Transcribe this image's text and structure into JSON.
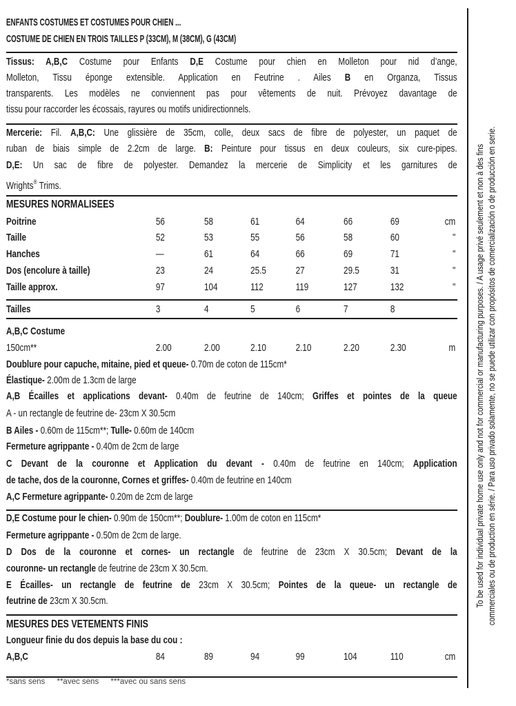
{
  "header": {
    "lines": [
      "ENFANTS COSTUMES ET COSTUMES POUR CHIEN ...",
      "COSTUME DE CHIEN EN TROIS TAILLES P (33CM), M (38CM), G (43CM)"
    ]
  },
  "tissus": {
    "lines": [
      [
        {
          "t": "Tissus: A,B,C",
          "b": true
        },
        {
          "t": " Costume pour Enfants "
        },
        {
          "t": "D,E",
          "b": true
        },
        {
          "t": " Costume pour chien en Molleton pour nid d’ange,"
        }
      ],
      [
        {
          "t": "Molleton, Tissu éponge extensible. Application en Feutrine . Ailes "
        },
        {
          "t": "B",
          "b": true
        },
        {
          "t": " en Organza, Tissus"
        }
      ],
      [
        {
          "t": "transparents. Les modèles ne conviennent pas pour vêtements de nuit. Prévoyez davantage de"
        }
      ],
      [
        {
          "t": "tissu pour raccorder les écossais, rayures ou motifs unidirectionnels."
        }
      ]
    ]
  },
  "mercerie": {
    "lines": [
      [
        {
          "t": "Mercerie:",
          "b": true
        },
        {
          "t": " Fil. "
        },
        {
          "t": "A,B,C:",
          "b": true
        },
        {
          "t": " Une glissière de 35cm, colle, deux sacs de fibre de polyester, un paquet de"
        }
      ],
      [
        {
          "t": "ruban de biais simple de 2.2cm de large. "
        },
        {
          "t": "B:",
          "b": true
        },
        {
          "t": " Peinture pour tissus en deux couleurs, six cure-pipes."
        }
      ],
      [
        {
          "t": "D,E:",
          "b": true
        },
        {
          "t": " Un sac de fibre de polyester. Demandez la mercerie de Simplicity et les garnitures de"
        }
      ],
      [
        {
          "t": "Wrights"
        },
        {
          "t": "®",
          "sup": true
        },
        {
          "t": " Trims."
        }
      ]
    ]
  },
  "measurements": {
    "title": "MESURES NORMALISEES",
    "rows": [
      {
        "label": "Poitrine",
        "values": [
          "56",
          "58",
          "61",
          "64",
          "66",
          "69"
        ],
        "unit": "cm"
      },
      {
        "label": "Taille",
        "values": [
          "52",
          "53",
          "55",
          "56",
          "58",
          "60"
        ],
        "unit": "\""
      },
      {
        "label": "Hanches",
        "values": [
          "—",
          "61",
          "64",
          "66",
          "69",
          "71"
        ],
        "unit": "\""
      },
      {
        "label": "Dos (encolure à taille)",
        "values": [
          "23",
          "24",
          "25.5",
          "27",
          "29.5",
          "31"
        ],
        "unit": "\""
      },
      {
        "label": "Taille approx.",
        "values": [
          "97",
          "104",
          "112",
          "119",
          "127",
          "132"
        ],
        "unit": "\""
      }
    ]
  },
  "sizes": {
    "label": "Tailles",
    "values": [
      "3",
      "4",
      "5",
      "6",
      "7",
      "8"
    ]
  },
  "costume_abc": {
    "heading": "A,B,C Costume",
    "row": {
      "label": "150cm**",
      "values": [
        "2.00",
        "2.00",
        "2.10",
        "2.10",
        "2.20",
        "2.30"
      ],
      "unit": "m"
    }
  },
  "abc_notes": {
    "lines": [
      [
        {
          "t": "Doublure pour capuche, mitaine, pied et queue-",
          "b": true
        },
        {
          "t": " 0.70m de coton de 115cm*"
        }
      ],
      [
        {
          "t": "Élastique-",
          "b": true
        },
        {
          "t": " 2.00m de 1.3cm de large"
        }
      ],
      [
        {
          "t": "A,B Écailles et applications devant-",
          "b": true
        },
        {
          "t": " 0.40m de feutrine de 140cm; "
        },
        {
          "t": "Griffes et pointes de la queue",
          "b": true
        }
      ],
      [
        {
          "t": "A - un rectangle de feutrine de- 23cm X 30.5cm"
        }
      ],
      [
        {
          "t": "B Ailes -",
          "b": true
        },
        {
          "t": " 0.60m de 115cm**; "
        },
        {
          "t": "Tulle-",
          "b": true
        },
        {
          "t": " 0.60m de 140cm"
        }
      ],
      [
        {
          "t": "Fermeture agrippante -",
          "b": true
        },
        {
          "t": " 0.40m de 2cm de large"
        }
      ],
      [
        {
          "t": "C Devant de la couronne et Application du devant -",
          "b": true
        },
        {
          "t": " 0.40m de feutrine en 140cm; "
        },
        {
          "t": "Application",
          "b": true
        }
      ],
      [
        {
          "t": "de tache, dos de la couronne, Cornes et griffes-",
          "b": true
        },
        {
          "t": " 0.40m de feutrine en 140cm"
        }
      ],
      [
        {
          "t": "A,C Fermeture agrippante-",
          "b": true
        },
        {
          "t": " 0.20m de 2cm de large"
        }
      ]
    ]
  },
  "de_notes": {
    "lines": [
      [
        {
          "t": "D,E Costume pour le chien-",
          "b": true
        },
        {
          "t": " 0.90m de 150cm**; "
        },
        {
          "t": "Doublure-",
          "b": true
        },
        {
          "t": " 1.00m de coton en 115cm*"
        }
      ],
      [
        {
          "t": "Fermeture agrippante -",
          "b": true
        },
        {
          "t": " 0.50m de 2cm de large."
        }
      ],
      [
        {
          "t": "D Dos de la couronne et cornes- un rectangle",
          "b": true
        },
        {
          "t": " de feutrine de 23cm X 30.5cm; "
        },
        {
          "t": "Devant de la",
          "b": true
        }
      ],
      [
        {
          "t": "couronne- un rectangle",
          "b": true
        },
        {
          "t": " de feutrine de 23cm X 30.5cm."
        }
      ],
      [
        {
          "t": "E Écailles- un rectangle de feutrine de",
          "b": true
        },
        {
          "t": " 23cm X 30.5cm; "
        },
        {
          "t": "Pointes de la queue- un rectangle de",
          "b": true
        }
      ],
      [
        {
          "t": "feutrine de",
          "b": true
        },
        {
          "t": " 23cm X 30.5cm."
        }
      ]
    ]
  },
  "finished": {
    "title": "MESURES DES VETEMENTS FINIS",
    "subtitle": "Longueur finie du dos depuis la base du cou :",
    "row": {
      "label": "A,B,C",
      "values": [
        "84",
        "89",
        "94",
        "99",
        "104",
        "110"
      ],
      "unit": "cm"
    }
  },
  "footer": {
    "notes": [
      "*sans sens",
      "**avec sens",
      "***avec ou sans sens"
    ]
  },
  "side_notice": {
    "lines": [
      "To be used for individual private home use only and not for commercial or manufacturing purposes. / A usage privé seulement et non à des fins",
      "commerciales ou de production en série. / Para uso privado solamente, no se puede utilizar con propósitos de comercialización o de producción en serie."
    ]
  }
}
